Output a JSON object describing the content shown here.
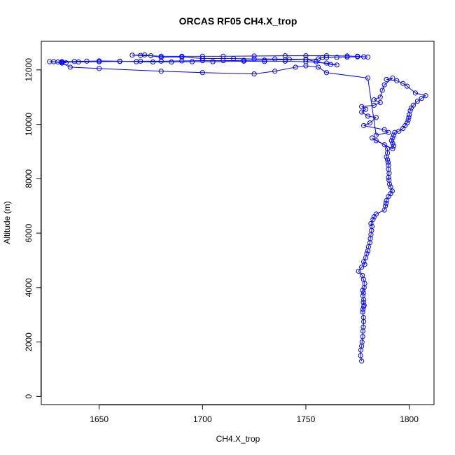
{
  "chart_data": {
    "type": "scatter",
    "title": "ORCAS RF05 CH4.X_trop",
    "xlabel": "CH4.X_trop",
    "ylabel": "Altitude (m)",
    "xlim": [
      1622,
      1812
    ],
    "ylim": [
      -300,
      13050
    ],
    "xticks": [
      1650,
      1700,
      1750,
      1800
    ],
    "yticks": [
      0,
      2000,
      4000,
      6000,
      8000,
      10000,
      12000
    ],
    "grid": false,
    "series": [
      {
        "color": "#0000ff",
        "marker": "open-circle",
        "connected": true,
        "points": [
          [
            1777,
            1300
          ],
          [
            1776.5,
            1500
          ],
          [
            1776.6,
            1700
          ],
          [
            1777,
            1850
          ],
          [
            1777.2,
            2000
          ],
          [
            1777.5,
            2200
          ],
          [
            1777.6,
            2400
          ],
          [
            1777.8,
            2550
          ],
          [
            1778,
            2750
          ],
          [
            1777.9,
            2900
          ],
          [
            1777.5,
            3100
          ],
          [
            1777.6,
            3200
          ],
          [
            1778,
            3300
          ],
          [
            1778.2,
            3350
          ],
          [
            1777.8,
            3450
          ],
          [
            1778,
            3550
          ],
          [
            1777.6,
            3700
          ],
          [
            1777.9,
            3800
          ],
          [
            1777.5,
            3900
          ],
          [
            1778.2,
            4000
          ],
          [
            1778.5,
            4150
          ],
          [
            1777.9,
            4300
          ],
          [
            1777.3,
            4450
          ],
          [
            1775.5,
            4600
          ],
          [
            1777,
            4750
          ],
          [
            1778.5,
            4850
          ],
          [
            1778,
            4950
          ],
          [
            1779,
            5100
          ],
          [
            1779.5,
            5250
          ],
          [
            1780,
            5350
          ],
          [
            1780.3,
            5500
          ],
          [
            1781,
            5650
          ],
          [
            1781.2,
            5800
          ],
          [
            1781.5,
            5950
          ],
          [
            1781.8,
            6100
          ],
          [
            1782,
            6250
          ],
          [
            1781.5,
            6350
          ],
          [
            1782.5,
            6500
          ],
          [
            1783,
            6600
          ],
          [
            1784,
            6700
          ],
          [
            1788,
            6850
          ],
          [
            1788.5,
            7000
          ],
          [
            1788.8,
            7100
          ],
          [
            1789,
            7200
          ],
          [
            1790,
            7350
          ],
          [
            1791,
            7450
          ],
          [
            1791.8,
            7550
          ],
          [
            1791,
            7700
          ],
          [
            1790.5,
            7800
          ],
          [
            1790.2,
            7950
          ],
          [
            1790,
            8050
          ],
          [
            1790.3,
            8200
          ],
          [
            1790,
            8350
          ],
          [
            1790,
            8500
          ],
          [
            1789.8,
            8600
          ],
          [
            1789.5,
            8700
          ],
          [
            1789,
            8800
          ],
          [
            1789.5,
            8950
          ],
          [
            1789.5,
            9100
          ],
          [
            1788,
            9250
          ],
          [
            1782,
            9500
          ],
          [
            1784,
            9400
          ],
          [
            1792,
            9100
          ],
          [
            1792.5,
            9200
          ],
          [
            1792,
            9300
          ],
          [
            1791.5,
            9400
          ],
          [
            1792,
            9500
          ],
          [
            1792.5,
            9600
          ],
          [
            1793,
            9700
          ],
          [
            1795,
            9750
          ],
          [
            1797,
            9850
          ],
          [
            1798,
            9950
          ],
          [
            1799,
            10050
          ],
          [
            1799.5,
            10150
          ],
          [
            1799.8,
            10250
          ],
          [
            1800,
            10350
          ],
          [
            1800.5,
            10500
          ],
          [
            1801,
            10600
          ],
          [
            1802,
            10700
          ],
          [
            1804,
            10850
          ],
          [
            1806,
            10950
          ],
          [
            1808,
            11050
          ],
          [
            1803,
            11150
          ],
          [
            1799,
            11400
          ],
          [
            1797,
            11500
          ],
          [
            1794,
            11600
          ],
          [
            1789,
            11650
          ],
          [
            1792,
            11700
          ],
          [
            1788,
            11450
          ],
          [
            1787,
            11250
          ],
          [
            1786,
            11000
          ],
          [
            1783,
            10900
          ],
          [
            1786,
            10800
          ],
          [
            1783,
            10700
          ],
          [
            1777,
            10650
          ],
          [
            1779,
            10550
          ],
          [
            1777,
            10450
          ],
          [
            1780,
            10300
          ],
          [
            1784,
            10250
          ],
          [
            1781,
            10050
          ],
          [
            1778,
            9950
          ],
          [
            1788,
            9800
          ],
          [
            1790,
            9700
          ],
          [
            1784,
            9600
          ],
          [
            1780,
            11700
          ],
          [
            1760,
            11900
          ],
          [
            1756,
            12100
          ],
          [
            1750,
            12150
          ],
          [
            1745,
            12100
          ],
          [
            1735,
            11950
          ],
          [
            1725,
            11850
          ],
          [
            1700,
            11900
          ],
          [
            1680,
            11950
          ],
          [
            1650,
            12050
          ],
          [
            1636,
            12100
          ],
          [
            1632,
            12250
          ],
          [
            1628,
            12300
          ],
          [
            1626,
            12300
          ],
          [
            1632,
            12280
          ],
          [
            1640,
            12290
          ],
          [
            1650,
            12300
          ],
          [
            1660,
            12310
          ],
          [
            1670,
            12320
          ],
          [
            1680,
            12320
          ],
          [
            1690,
            12330
          ],
          [
            1700,
            12340
          ],
          [
            1710,
            12340
          ],
          [
            1720,
            12350
          ],
          [
            1730,
            12360
          ],
          [
            1740,
            12370
          ],
          [
            1750,
            12380
          ],
          [
            1756,
            12400
          ],
          [
            1758,
            12450
          ],
          [
            1760,
            12450
          ],
          [
            1765,
            12460
          ],
          [
            1770,
            12470
          ],
          [
            1775,
            12480
          ],
          [
            1778,
            12480
          ],
          [
            1780,
            12470
          ],
          [
            1775,
            12500
          ],
          [
            1770,
            12510
          ],
          [
            1760,
            12520
          ],
          [
            1750,
            12520
          ],
          [
            1740,
            12520
          ],
          [
            1725,
            12510
          ],
          [
            1710,
            12500
          ],
          [
            1700,
            12500
          ],
          [
            1690,
            12500
          ],
          [
            1680,
            12500
          ],
          [
            1675,
            12520
          ],
          [
            1670,
            12530
          ],
          [
            1666,
            12540
          ],
          [
            1672,
            12550
          ],
          [
            1680,
            12460
          ],
          [
            1690,
            12470
          ],
          [
            1700,
            12420
          ],
          [
            1715,
            12420
          ],
          [
            1725,
            12400
          ],
          [
            1735,
            12400
          ],
          [
            1742,
            12390
          ],
          [
            1750,
            12390
          ],
          [
            1755,
            12300
          ],
          [
            1762,
            12200
          ],
          [
            1765,
            12180
          ],
          [
            1760,
            12250
          ],
          [
            1750,
            12300
          ],
          [
            1740,
            12320
          ],
          [
            1730,
            12310
          ],
          [
            1720,
            12320
          ],
          [
            1705,
            12300
          ],
          [
            1695,
            12300
          ],
          [
            1685,
            12290
          ],
          [
            1676,
            12290
          ],
          [
            1668,
            12300
          ],
          [
            1660,
            12320
          ],
          [
            1650,
            12330
          ],
          [
            1644,
            12320
          ],
          [
            1638,
            12310
          ],
          [
            1632,
            12300
          ],
          [
            1630,
            12290
          ],
          [
            1634,
            12260
          ]
        ]
      }
    ]
  }
}
